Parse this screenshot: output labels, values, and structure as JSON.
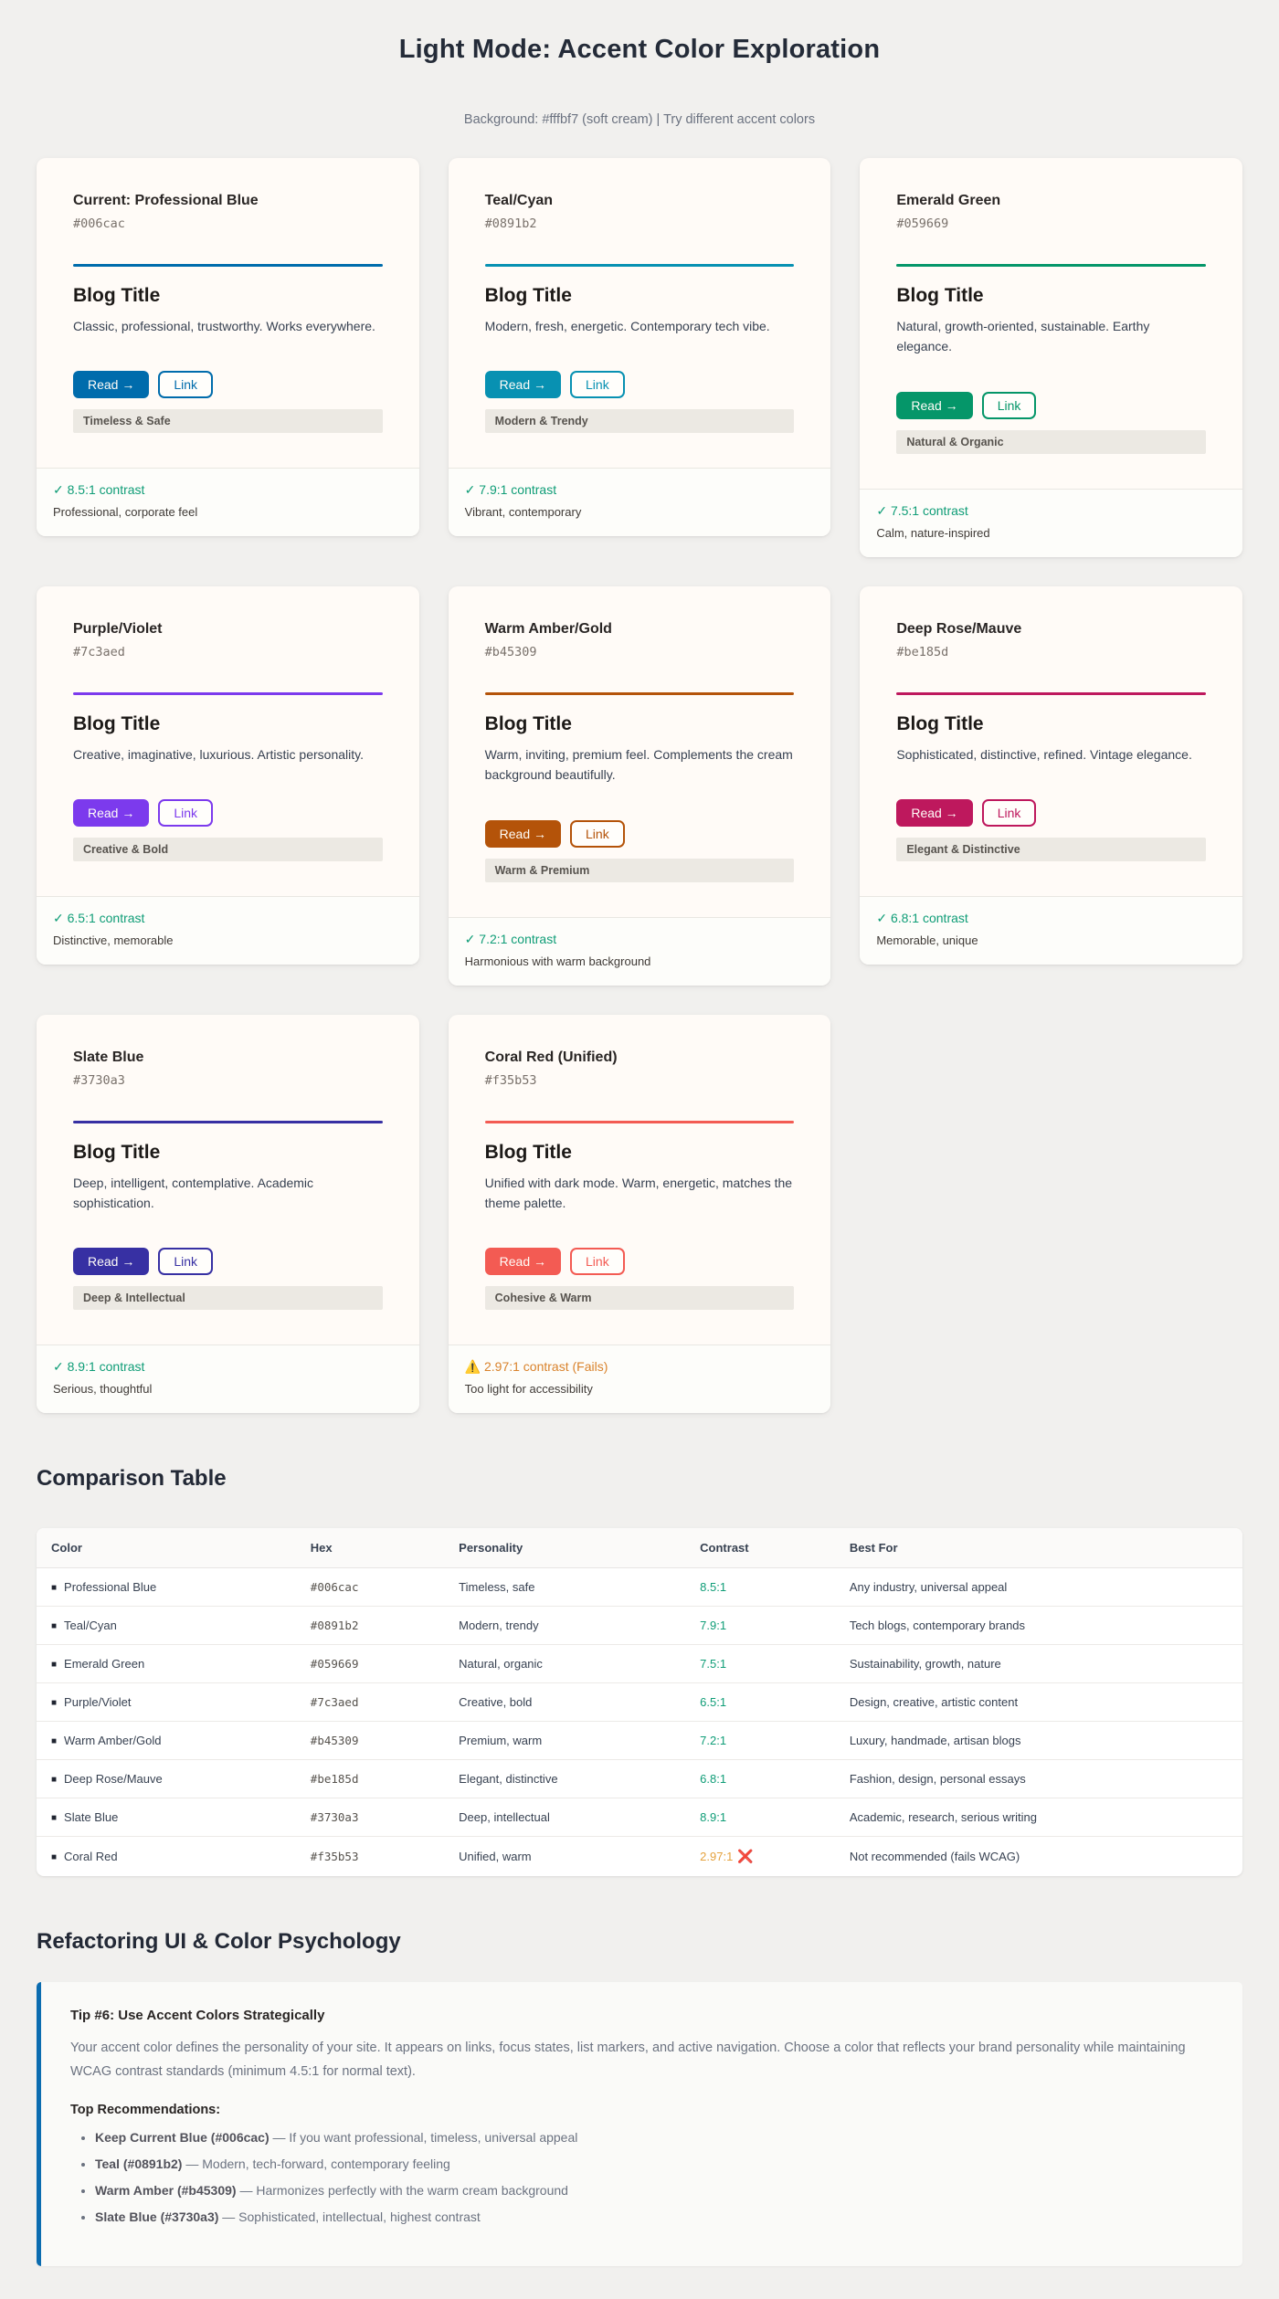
{
  "header": {
    "title": "Light Mode: Accent Color Exploration",
    "subtitle": "Background: #fffbf7 (soft cream) | Try different accent colors"
  },
  "colors": {
    "page_bg": "#f1f0ee",
    "card_bg": "#fffbf7",
    "pass_green": "#0f9d77",
    "fail_amber": "#d9822b",
    "tip_border_blue": "#0b6cb0"
  },
  "cards": [
    {
      "name": "Current: Professional Blue",
      "hex": "#006cac",
      "blog_title": "Blog Title",
      "description": "Classic, professional, trustworthy. Works everywhere.",
      "read_label": "Read →",
      "link_label": "Link",
      "tag": "Timeless & Safe",
      "contrast": "✓ 8.5:1 contrast",
      "note": "Professional, corporate feel",
      "status": "pass"
    },
    {
      "name": "Teal/Cyan",
      "hex": "#0891b2",
      "blog_title": "Blog Title",
      "description": "Modern, fresh, energetic. Contemporary tech vibe.",
      "read_label": "Read →",
      "link_label": "Link",
      "tag": "Modern & Trendy",
      "contrast": "✓ 7.9:1 contrast",
      "note": "Vibrant, contemporary",
      "status": "pass"
    },
    {
      "name": "Emerald Green",
      "hex": "#059669",
      "blog_title": "Blog Title",
      "description": "Natural, growth-oriented, sustainable. Earthy elegance.",
      "read_label": "Read →",
      "link_label": "Link",
      "tag": "Natural & Organic",
      "contrast": "✓ 7.5:1 contrast",
      "note": "Calm, nature-inspired",
      "status": "pass"
    },
    {
      "name": "Purple/Violet",
      "hex": "#7c3aed",
      "blog_title": "Blog Title",
      "description": "Creative, imaginative, luxurious. Artistic personality.",
      "read_label": "Read →",
      "link_label": "Link",
      "tag": "Creative & Bold",
      "contrast": "✓ 6.5:1 contrast",
      "note": "Distinctive, memorable",
      "status": "pass"
    },
    {
      "name": "Warm Amber/Gold",
      "hex": "#b45309",
      "blog_title": "Blog Title",
      "description": "Warm, inviting, premium feel. Complements the cream background beautifully.",
      "read_label": "Read →",
      "link_label": "Link",
      "tag": "Warm & Premium",
      "contrast": "✓ 7.2:1 contrast",
      "note": "Harmonious with warm background",
      "status": "pass"
    },
    {
      "name": "Deep Rose/Mauve",
      "hex": "#be185d",
      "blog_title": "Blog Title",
      "description": "Sophisticated, distinctive, refined. Vintage elegance.",
      "read_label": "Read →",
      "link_label": "Link",
      "tag": "Elegant & Distinctive",
      "contrast": "✓ 6.8:1 contrast",
      "note": "Memorable, unique",
      "status": "pass"
    },
    {
      "name": "Slate Blue",
      "hex": "#3730a3",
      "blog_title": "Blog Title",
      "description": "Deep, intelligent, contemplative. Academic sophistication.",
      "read_label": "Read →",
      "link_label": "Link",
      "tag": "Deep & Intellectual",
      "contrast": "✓ 8.9:1 contrast",
      "note": "Serious, thoughtful",
      "status": "pass"
    },
    {
      "name": "Coral Red (Unified)",
      "hex": "#f35b53",
      "blog_title": "Blog Title",
      "description": "Unified with dark mode. Warm, energetic, matches the theme palette.",
      "read_label": "Read →",
      "link_label": "Link",
      "tag": "Cohesive & Warm",
      "contrast": "⚠️ 2.97:1 contrast (Fails)",
      "note": "Too light for accessibility",
      "status": "fail"
    }
  ],
  "table": {
    "heading": "Comparison Table",
    "columns": [
      "Color",
      "Hex",
      "Personality",
      "Contrast",
      "Best For"
    ],
    "swatch_char": "■",
    "fail_mark": "❌",
    "rows": [
      {
        "color": "Professional Blue",
        "hex": "#006cac",
        "personality": "Timeless, safe",
        "contrast": "8.5:1",
        "fail": false,
        "best": "Any industry, universal appeal"
      },
      {
        "color": "Teal/Cyan",
        "hex": "#0891b2",
        "personality": "Modern, trendy",
        "contrast": "7.9:1",
        "fail": false,
        "best": "Tech blogs, contemporary brands"
      },
      {
        "color": "Emerald Green",
        "hex": "#059669",
        "personality": "Natural, organic",
        "contrast": "7.5:1",
        "fail": false,
        "best": "Sustainability, growth, nature"
      },
      {
        "color": "Purple/Violet",
        "hex": "#7c3aed",
        "personality": "Creative, bold",
        "contrast": "6.5:1",
        "fail": false,
        "best": "Design, creative, artistic content"
      },
      {
        "color": "Warm Amber/Gold",
        "hex": "#b45309",
        "personality": "Premium, warm",
        "contrast": "7.2:1",
        "fail": false,
        "best": "Luxury, handmade, artisan blogs"
      },
      {
        "color": "Deep Rose/Mauve",
        "hex": "#be185d",
        "personality": "Elegant, distinctive",
        "contrast": "6.8:1",
        "fail": false,
        "best": "Fashion, design, personal essays"
      },
      {
        "color": "Slate Blue",
        "hex": "#3730a3",
        "personality": "Deep, intellectual",
        "contrast": "8.9:1",
        "fail": false,
        "best": "Academic, research, serious writing"
      },
      {
        "color": "Coral Red",
        "hex": "#f35b53",
        "personality": "Unified, warm",
        "contrast": "2.97:1",
        "fail": true,
        "best": "Not recommended (fails WCAG)"
      }
    ]
  },
  "tips": {
    "heading": "Refactoring UI & Color Psychology",
    "tip_title": "Tip #6: Use Accent Colors Strategically",
    "tip_body": "Your accent color defines the personality of your site. It appears on links, focus states, list markers, and active navigation. Choose a color that reflects your brand personality while maintaining WCAG contrast standards (minimum 4.5:1 for normal text).",
    "recommendations_title": "Top Recommendations:",
    "recommendations": [
      {
        "bold": "Keep Current Blue (#006cac)",
        "rest": "— If you want professional, timeless, universal appeal"
      },
      {
        "bold": "Teal (#0891b2)",
        "rest": "— Modern, tech-forward, contemporary feeling"
      },
      {
        "bold": "Warm Amber (#b45309)",
        "rest": "— Harmonizes perfectly with the warm cream background"
      },
      {
        "bold": "Slate Blue (#3730a3)",
        "rest": "— Sophisticated, intellectual, highest contrast"
      }
    ]
  }
}
